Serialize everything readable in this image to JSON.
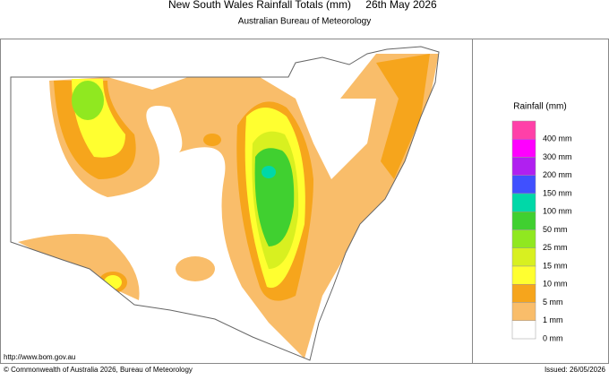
{
  "header": {
    "title": "New South Wales Rainfall Totals (mm)",
    "date": "26th May 2026",
    "subtitle": "Australian Bureau of Meteorology"
  },
  "legend": {
    "title": "Rainfall (mm)",
    "colors": [
      "#ff40a8",
      "#ff00ff",
      "#b020f0",
      "#4050ff",
      "#00d8a8",
      "#40d030",
      "#90e820",
      "#d8f020",
      "#ffff30",
      "#f6a51c",
      "#f9bd6a",
      "#ffffff"
    ],
    "labels": [
      "400 mm",
      "300 mm",
      "200 mm",
      "150 mm",
      "100 mm",
      "50 mm",
      "25 mm",
      "15 mm",
      "10 mm",
      "5 mm",
      "1 mm",
      "0 mm"
    ]
  },
  "footer": {
    "url": "http://www.bom.gov.au",
    "copyright": "© Commonwealth of Australia 2026, Bureau of Meteorology",
    "issued": "Issued: 26/05/2026"
  }
}
